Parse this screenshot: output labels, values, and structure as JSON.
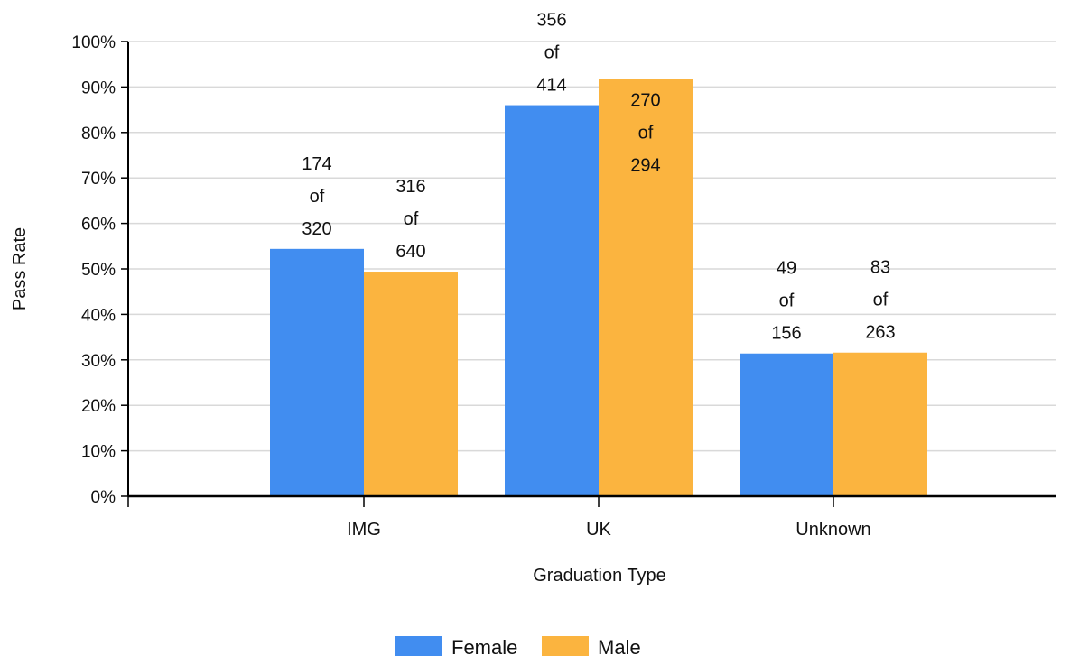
{
  "chart_data": {
    "type": "bar",
    "xlabel": "Graduation Type",
    "ylabel": "Pass Rate",
    "categories": [
      "IMG",
      "UK",
      "Unknown"
    ],
    "ylim": [
      0,
      100
    ],
    "yticks": [
      "0%",
      "10%",
      "20%",
      "30%",
      "40%",
      "50%",
      "60%",
      "70%",
      "80%",
      "90%",
      "100%"
    ],
    "grid": true,
    "legend_position": "bottom-center",
    "series": [
      {
        "name": "Female",
        "color": "#418DF0",
        "values": [
          54.4,
          86.0,
          31.4
        ],
        "labels": [
          [
            "174",
            "of",
            "320"
          ],
          [
            "356",
            "of",
            "414"
          ],
          [
            "49",
            "of",
            "156"
          ]
        ]
      },
      {
        "name": "Male",
        "color": "#FBB43F",
        "values": [
          49.4,
          91.8,
          31.6
        ],
        "labels": [
          [
            "316",
            "of",
            "640"
          ],
          [
            "270",
            "of",
            "294"
          ],
          [
            "83",
            "of",
            "263"
          ]
        ]
      }
    ]
  }
}
